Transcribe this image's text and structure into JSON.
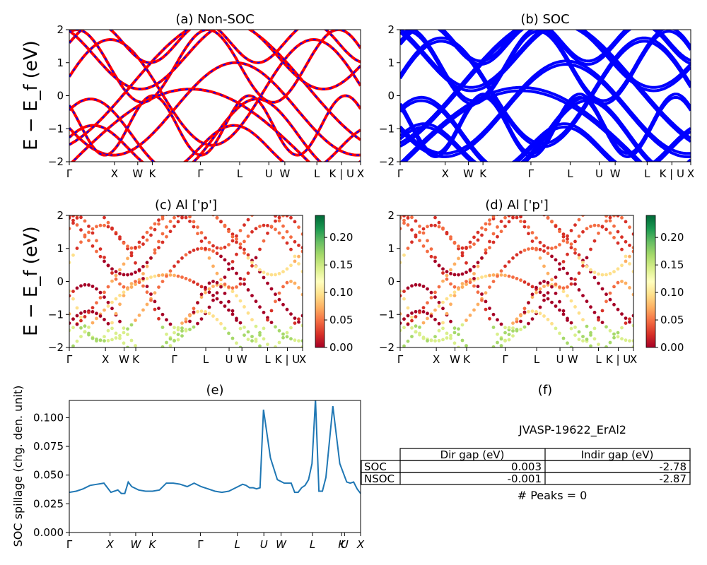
{
  "chart_data": [
    {
      "id": "a",
      "type": "line",
      "title": "(a) Non-SOC",
      "ylabel": "E − E_f (eV)",
      "ylim": [
        -2,
        2
      ],
      "yticks": [
        "2",
        "1",
        "0",
        "−1",
        "−2"
      ],
      "kpath_labels": [
        "Γ",
        "X",
        "W",
        "K",
        "Γ",
        "L",
        "U",
        "W",
        "L",
        "K | U",
        "X"
      ],
      "series_colors": [
        "#ff0000",
        "#0000ff"
      ],
      "style": "red solid bands overlaid with blue dashed bands"
    },
    {
      "id": "b",
      "type": "line",
      "title": "(b) SOC",
      "ylim": [
        -2,
        2
      ],
      "yticks": [
        "2",
        "1",
        "0",
        "−1",
        "−2"
      ],
      "kpath_labels": [
        "Γ",
        "X",
        "W",
        "K",
        "Γ",
        "L",
        "U",
        "W",
        "L",
        "K | U",
        "X"
      ],
      "series_colors": [
        "#0000ff"
      ]
    },
    {
      "id": "c",
      "type": "scatter",
      "title": "(c)  Al ['p']",
      "ylabel": "E − E_f (eV)",
      "ylim": [
        -2,
        2
      ],
      "yticks": [
        "2",
        "1",
        "0",
        "−1",
        "−2"
      ],
      "kpath_labels": [
        "Γ",
        "X",
        "W",
        "K",
        "Γ",
        "L",
        "U",
        "W",
        "L",
        "K | U",
        "X"
      ],
      "colorbar": {
        "ticks": [
          "0.20",
          "0.15",
          "0.10",
          "0.05",
          "0.00"
        ],
        "range": [
          0,
          0.24
        ],
        "cmap": "RdYlGn"
      }
    },
    {
      "id": "d",
      "type": "scatter",
      "title": "(d) Al ['p']",
      "ylim": [
        -2,
        2
      ],
      "yticks": [
        "2",
        "1",
        "0",
        "−1",
        "−2"
      ],
      "kpath_labels": [
        "Γ",
        "X",
        "W",
        "K",
        "Γ",
        "L",
        "U",
        "W",
        "L",
        "K | U",
        "X"
      ],
      "colorbar": {
        "ticks": [
          "0.20",
          "0.15",
          "0.10",
          "0.05",
          "0.00"
        ],
        "range": [
          0,
          0.24
        ],
        "cmap": "RdYlGn"
      }
    },
    {
      "id": "e",
      "type": "line",
      "title": "(e)",
      "ylabel": "SOC spillage (chg. den. unit)",
      "ylim": [
        0,
        0.115
      ],
      "yticks": [
        "0.100",
        "0.075",
        "0.050",
        "0.025",
        "0.000"
      ],
      "kpath_labels": [
        "Γ",
        "X",
        "W",
        "K",
        "Γ",
        "L",
        "U",
        "W",
        "L",
        "K",
        "U",
        "X"
      ],
      "series_colors": [
        "#1f77b4"
      ],
      "x": [
        0,
        2,
        4,
        6,
        8,
        10,
        12,
        14,
        15,
        16,
        17,
        18,
        20,
        22,
        24,
        26,
        28,
        30,
        32,
        34,
        36,
        38,
        40,
        42,
        44,
        46,
        48,
        50,
        51,
        52,
        53,
        54,
        55,
        56,
        58,
        60,
        62,
        64,
        65,
        66,
        67,
        68,
        69,
        70,
        71,
        72,
        73,
        74,
        76,
        78,
        80,
        81,
        82,
        83,
        84
      ],
      "y": [
        0.035,
        0.036,
        0.038,
        0.041,
        0.042,
        0.043,
        0.035,
        0.037,
        0.034,
        0.034,
        0.044,
        0.04,
        0.037,
        0.036,
        0.036,
        0.037,
        0.043,
        0.043,
        0.042,
        0.04,
        0.043,
        0.04,
        0.038,
        0.036,
        0.035,
        0.036,
        0.039,
        0.042,
        0.041,
        0.039,
        0.039,
        0.038,
        0.039,
        0.107,
        0.065,
        0.046,
        0.043,
        0.043,
        0.035,
        0.035,
        0.039,
        0.041,
        0.046,
        0.06,
        0.116,
        0.036,
        0.036,
        0.048,
        0.11,
        0.06,
        0.044,
        0.043,
        0.044,
        0.038,
        0.034
      ]
    }
  ],
  "panel_f": {
    "title": "(f)",
    "material": "JVASP-19622_ErAl2",
    "table": {
      "columns": [
        "Dir gap (eV)",
        "Indir gap (eV)"
      ],
      "rows": [
        {
          "label": "SOC",
          "values": [
            "0.003",
            "-2.78"
          ]
        },
        {
          "label": "NSOC",
          "values": [
            "-0.001",
            "-2.87"
          ]
        }
      ]
    },
    "peaks": "# Peaks = 0"
  }
}
